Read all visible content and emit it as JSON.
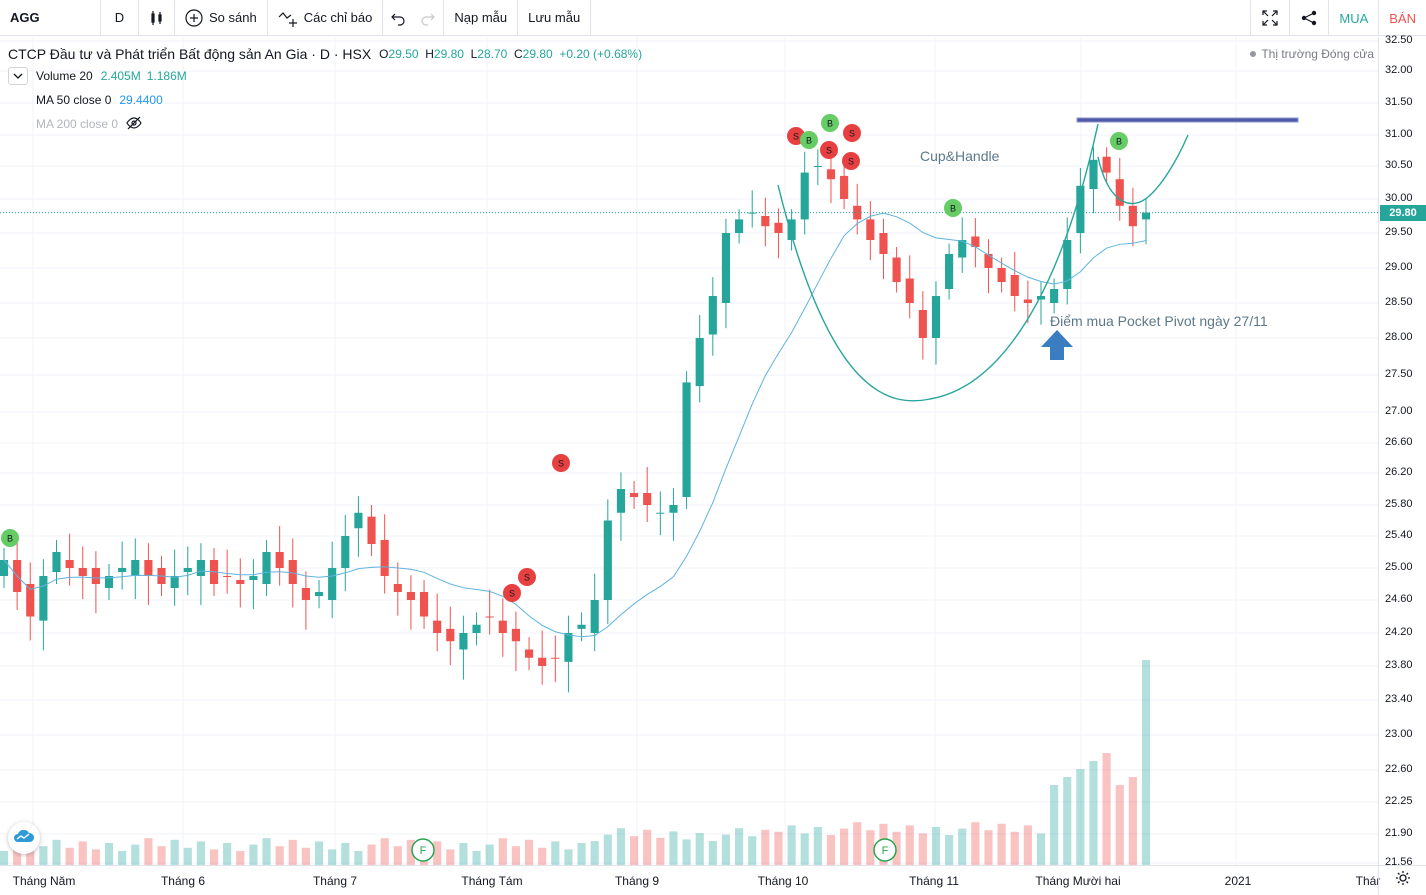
{
  "toolbar": {
    "symbol": "AGG",
    "interval": "D",
    "compare_label": "So sánh",
    "indicators_label": "Các chỉ báo",
    "save_template_label": "Nạp mẫu",
    "save_layout_label": "Lưu mẫu",
    "buy_label": "MUA",
    "sell_label": "BÁN",
    "icons": [
      "candles-icon",
      "plus-circle-icon",
      "indicators-icon",
      "undo-icon",
      "redo-icon",
      "fullscreen-icon",
      "share-icon"
    ]
  },
  "legend": {
    "title": "CTCP Đầu tư và Phát triển Bất động sản An Gia · D · HSX",
    "open_label": "O",
    "open": "29.50",
    "high_label": "H",
    "high": "29.80",
    "low_label": "L",
    "low": "28.70",
    "close_label": "C",
    "close": "29.80",
    "change": "+0.20 (+0.68%)",
    "indicators": [
      {
        "name": "Volume 20",
        "values": [
          "2.405M",
          "1.186M"
        ]
      },
      {
        "name": "MA 50 close 0",
        "values": [
          "29.4400"
        ]
      },
      {
        "name": "MA 200 close 0",
        "values": [],
        "hidden": true
      }
    ],
    "market_status": "Thị trường Đóng cửa"
  },
  "annotations": {
    "cup_handle": "Cup&Handle",
    "pivot": "Điểm mua Pocket Pivot ngày 27/11"
  },
  "colors": {
    "up": "#26a69a",
    "down": "#ef5350",
    "ma50": "#5fb3e0",
    "curve": "#26a69a",
    "handle_line": "#4e5aa7",
    "arrow": "#3a7dc1",
    "buy_marker": "#66cc66",
    "sell_marker": "#e84040"
  },
  "price_scale": {
    "labels": [
      "32.50",
      "32.00",
      "31.50",
      "31.00",
      "30.50",
      "30.00",
      "29.50",
      "29.00",
      "28.50",
      "28.00",
      "27.50",
      "27.00",
      "26.60",
      "26.20",
      "25.80",
      "25.40",
      "25.00",
      "24.60",
      "24.20",
      "23.80",
      "23.40",
      "23.00",
      "22.60",
      "22.25",
      "21.90",
      "21.56"
    ],
    "last_price": "29.80"
  },
  "time_scale": {
    "labels": [
      "Tháng Năm",
      "Tháng 6",
      "Tháng 7",
      "Tháng Tám",
      "Tháng 9",
      "Tháng 10",
      "Tháng 11",
      "Tháng Mười hai",
      "2021",
      "Thár"
    ]
  },
  "markers": {
    "buy": "B",
    "sell": "S",
    "financial": "F"
  },
  "chart_data": {
    "type": "candlestick",
    "symbol": "AGG",
    "ohlc_last": {
      "open": 29.5,
      "high": 29.8,
      "low": 28.7,
      "close": 29.8
    },
    "close_series": [
      25.1,
      24.7,
      24.4,
      24.9,
      25.2,
      25.0,
      24.9,
      24.8,
      24.9,
      25.0,
      25.1,
      24.9,
      24.8,
      24.9,
      25.0,
      25.1,
      24.8,
      24.9,
      24.8,
      24.9,
      25.2,
      25.0,
      24.8,
      24.6,
      24.7,
      25.0,
      25.4,
      25.7,
      25.3,
      24.9,
      24.7,
      24.6,
      24.4,
      24.2,
      24.1,
      24.2,
      24.3,
      24.4,
      24.2,
      24.1,
      23.9,
      23.8,
      23.9,
      24.2,
      24.3,
      24.6,
      25.6,
      26.0,
      25.9,
      25.8,
      25.7,
      25.8,
      27.4,
      28.0,
      28.6,
      29.5,
      29.7,
      29.8,
      29.6,
      29.5,
      29.7,
      30.4,
      30.5,
      30.3,
      30.0,
      29.7,
      29.4,
      29.2,
      28.8,
      28.5,
      28.0,
      28.6,
      29.2,
      29.4,
      29.3,
      29.0,
      28.8,
      28.6,
      28.5,
      28.6,
      28.7,
      29.4,
      30.2,
      30.6,
      30.4,
      29.9,
      29.6,
      29.8
    ],
    "annotations": [
      "Cup&Handle",
      "Điểm mua Pocket Pivot ngày 27/11"
    ],
    "ylim": [
      21.56,
      32.5
    ]
  }
}
